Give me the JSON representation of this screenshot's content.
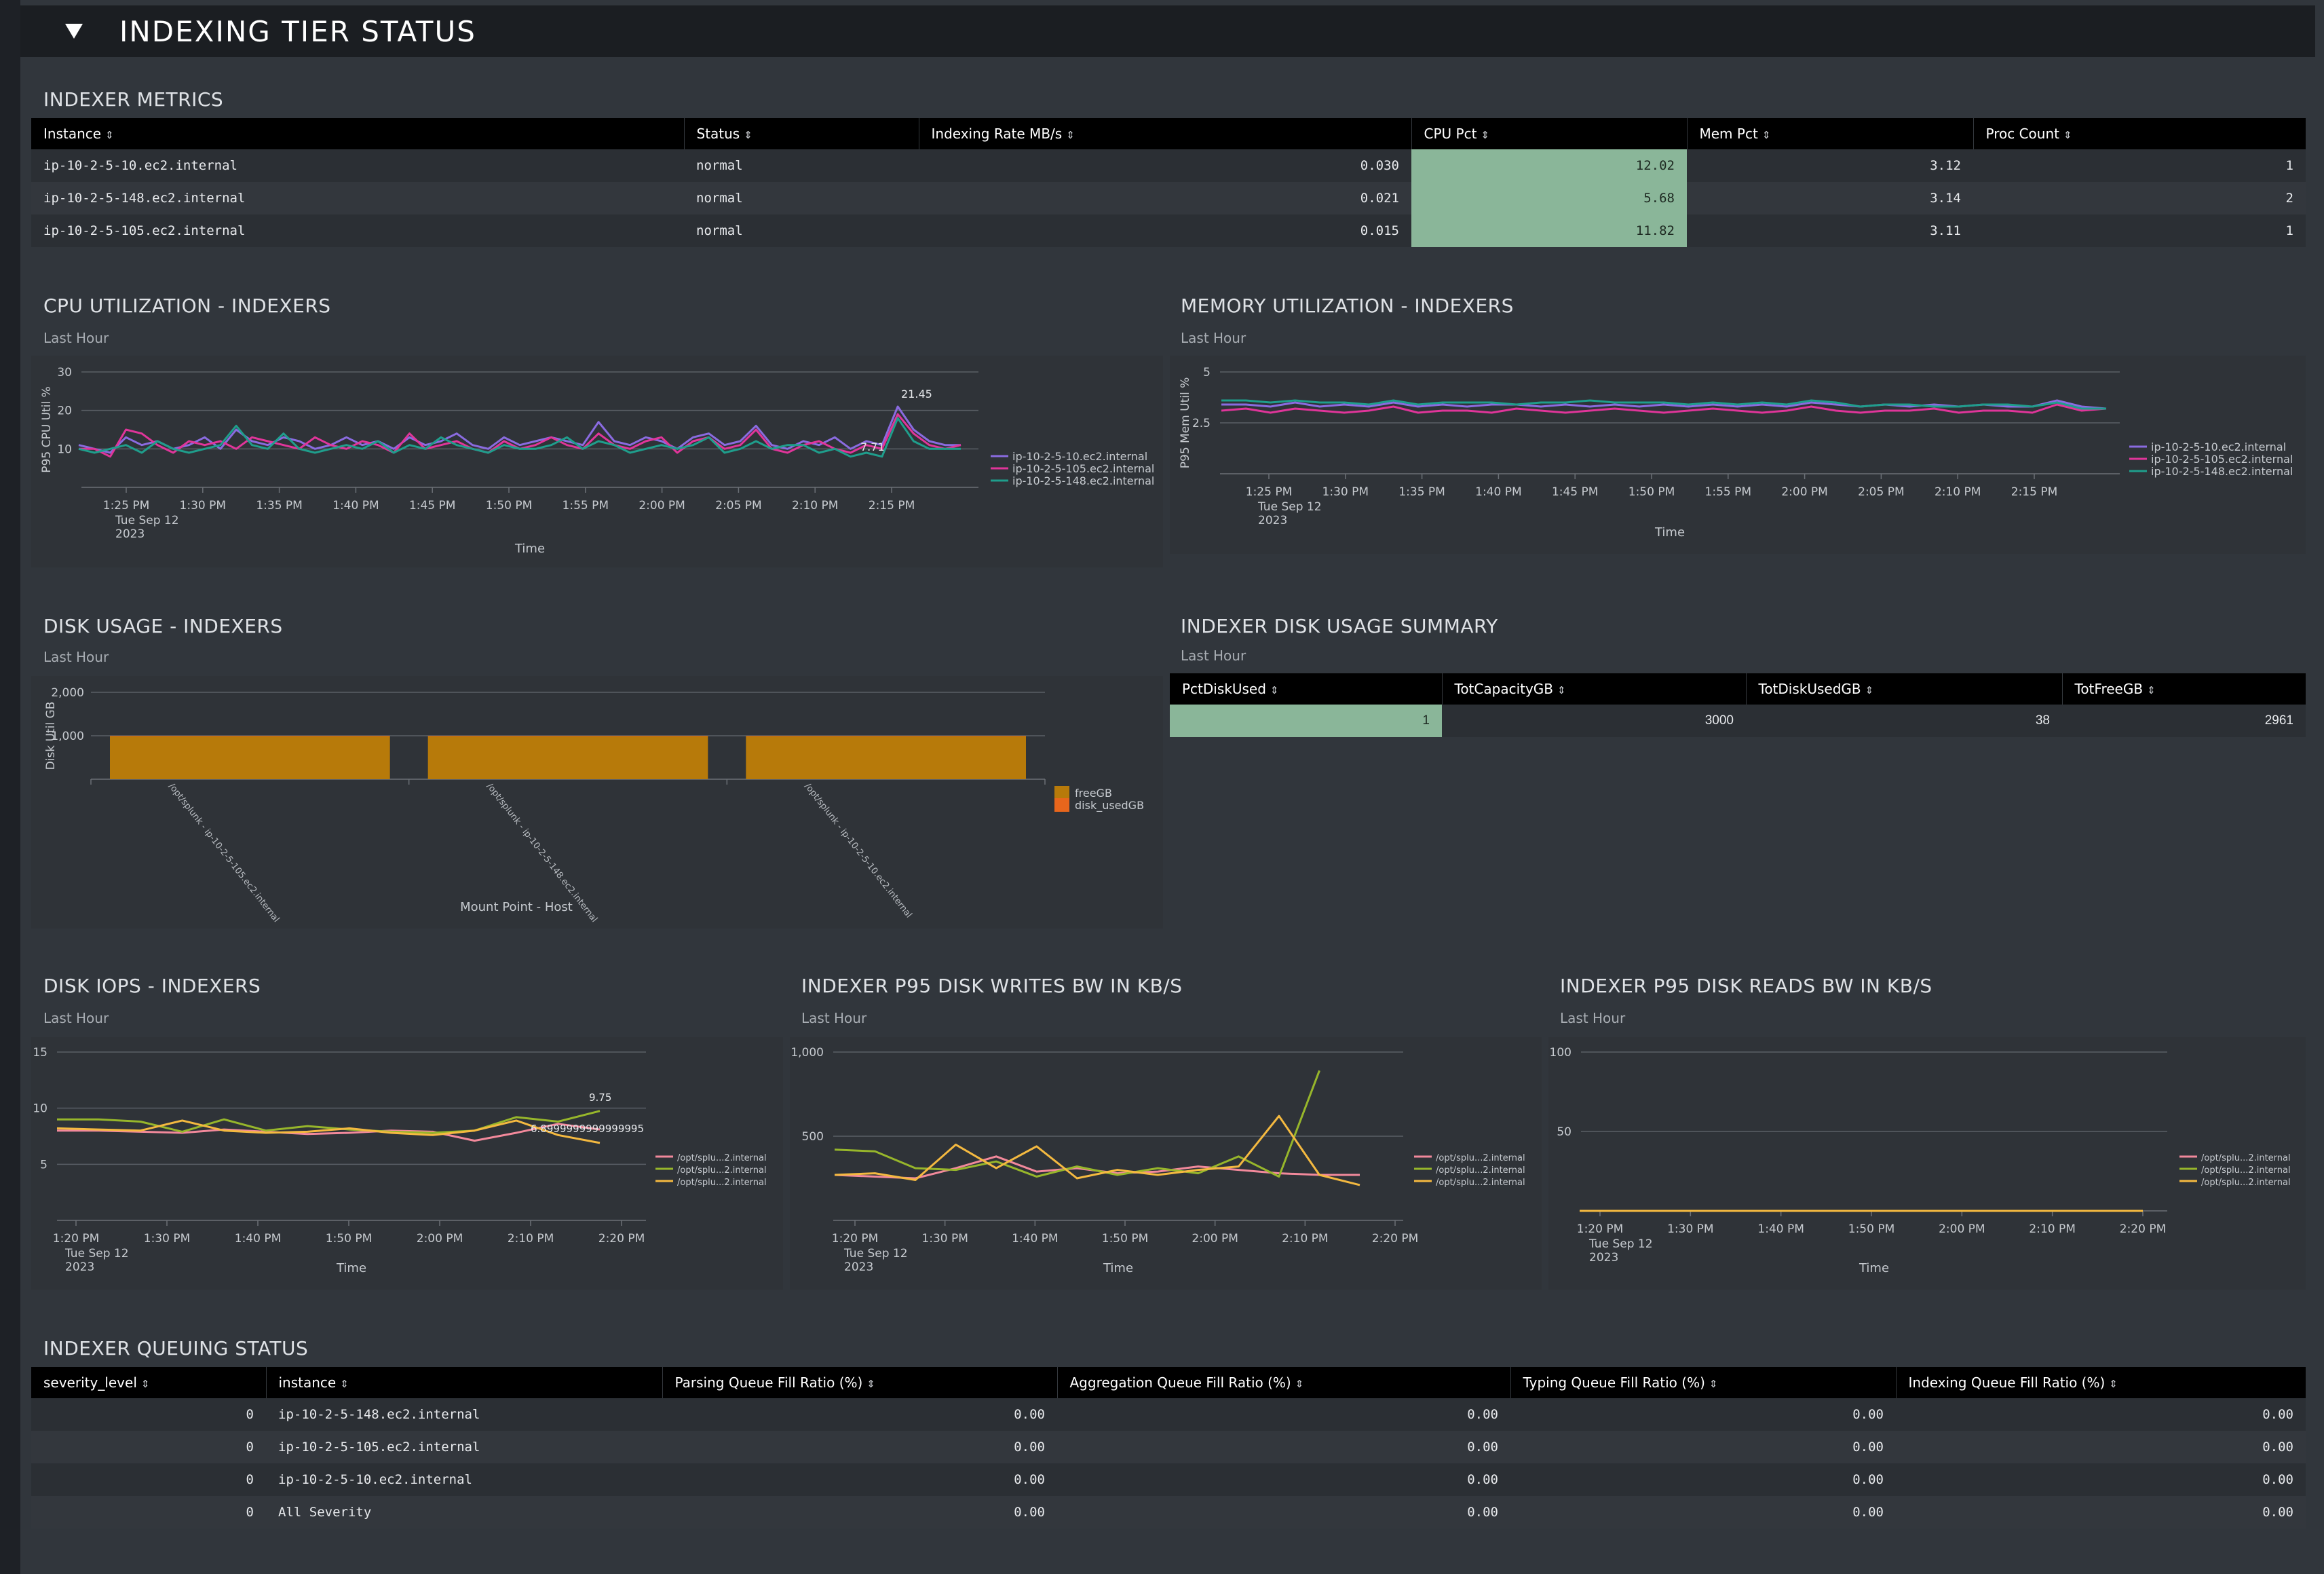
{
  "header": {
    "title": "INDEXING TIER STATUS"
  },
  "indexer_metrics": {
    "title": "INDEXER METRICS",
    "columns": [
      "Instance",
      "Status",
      "Indexing Rate MB/s",
      "CPU Pct",
      "Mem Pct",
      "Proc Count"
    ],
    "rows": [
      [
        "ip-10-2-5-10.ec2.internal",
        "normal",
        "0.030",
        "12.02",
        "3.12",
        "1"
      ],
      [
        "ip-10-2-5-148.ec2.internal",
        "normal",
        "0.021",
        "5.68",
        "3.14",
        "2"
      ],
      [
        "ip-10-2-5-105.ec2.internal",
        "normal",
        "0.015",
        "11.82",
        "3.11",
        "1"
      ]
    ]
  },
  "cpu_panel": {
    "title": "CPU UTILIZATION - INDEXERS",
    "subtitle": "Last Hour",
    "chart_data": {
      "type": "line",
      "ylabel": "P95 CPU Util %",
      "xlabel": "Time",
      "ylim": [
        0,
        30
      ],
      "yticks": [
        "10",
        "20",
        "30"
      ],
      "xticks": [
        "1:25 PM",
        "1:30 PM",
        "1:35 PM",
        "1:40 PM",
        "1:45 PM",
        "1:50 PM",
        "1:55 PM",
        "2:00 PM",
        "2:05 PM",
        "2:10 PM",
        "2:15 PM"
      ],
      "date_label": [
        "Tue Sep 12",
        "2023"
      ],
      "annotations": [
        "21.45",
        "7.71"
      ],
      "series": [
        {
          "name": "ip-10-2-5-10.ec2.internal",
          "color": "#8a6be0",
          "values": [
            11,
            10,
            9,
            13,
            11,
            12,
            10,
            11,
            13,
            10,
            15,
            12,
            11,
            13,
            12,
            10,
            11,
            13,
            11,
            12,
            10,
            13,
            11,
            12,
            14,
            11,
            10,
            13,
            11,
            12,
            13,
            12,
            11,
            17,
            12,
            11,
            13,
            12,
            10,
            13,
            14,
            11,
            12,
            16,
            11,
            10,
            12,
            11,
            13,
            10,
            12,
            11,
            21,
            15,
            12,
            11,
            11
          ]
        },
        {
          "name": "ip-10-2-5-105.ec2.internal",
          "color": "#e0359a",
          "values": [
            10,
            10,
            8,
            15,
            14,
            11,
            9,
            12,
            11,
            12,
            10,
            13,
            12,
            11,
            10,
            13,
            11,
            10,
            12,
            11,
            9,
            14,
            10,
            11,
            12,
            10,
            9,
            12,
            10,
            11,
            13,
            11,
            10,
            14,
            11,
            10,
            12,
            13,
            9,
            12,
            13,
            10,
            11,
            15,
            10,
            9,
            11,
            12,
            10,
            9,
            11,
            10,
            19,
            14,
            11,
            10,
            11
          ]
        },
        {
          "name": "ip-10-2-5-148.ec2.internal",
          "color": "#1f9e8c",
          "values": [
            10,
            9,
            10,
            11,
            9,
            12,
            10,
            9,
            10,
            11,
            16,
            11,
            10,
            14,
            10,
            9,
            10,
            11,
            10,
            12,
            9,
            11,
            10,
            13,
            11,
            10,
            9,
            11,
            10,
            10,
            11,
            13,
            10,
            12,
            11,
            9,
            10,
            11,
            10,
            11,
            13,
            9,
            10,
            12,
            10,
            11,
            11,
            9,
            10,
            8,
            9,
            8,
            18,
            12,
            10,
            10,
            10
          ]
        }
      ]
    }
  },
  "mem_panel": {
    "title": "MEMORY UTILIZATION - INDEXERS",
    "subtitle": "Last Hour",
    "chart_data": {
      "type": "line",
      "ylabel": "P95 Mem Util %",
      "xlabel": "Time",
      "ylim": [
        0,
        5
      ],
      "yticks": [
        "2.5",
        "5"
      ],
      "xticks": [
        "1:25 PM",
        "1:30 PM",
        "1:35 PM",
        "1:40 PM",
        "1:45 PM",
        "1:50 PM",
        "1:55 PM",
        "2:00 PM",
        "2:05 PM",
        "2:10 PM",
        "2:15 PM"
      ],
      "date_label": [
        "Tue Sep 12",
        "2023"
      ],
      "series": [
        {
          "name": "ip-10-2-5-10.ec2.internal",
          "color": "#8a6be0",
          "values": [
            3.4,
            3.4,
            3.3,
            3.5,
            3.3,
            3.4,
            3.3,
            3.5,
            3.3,
            3.4,
            3.3,
            3.4,
            3.4,
            3.3,
            3.4,
            3.3,
            3.4,
            3.3,
            3.4,
            3.3,
            3.4,
            3.3,
            3.4,
            3.3,
            3.5,
            3.4,
            3.3,
            3.4,
            3.3,
            3.4,
            3.3,
            3.4,
            3.3,
            3.3,
            3.6,
            3.3,
            3.2
          ]
        },
        {
          "name": "ip-10-2-5-105.ec2.internal",
          "color": "#e0359a",
          "values": [
            3.1,
            3.2,
            3.0,
            3.2,
            3.1,
            3.0,
            3.1,
            3.3,
            3.0,
            3.1,
            3.1,
            3.0,
            3.2,
            3.1,
            3.0,
            3.1,
            3.2,
            3.1,
            3.0,
            3.1,
            3.2,
            3.1,
            3.0,
            3.1,
            3.3,
            3.1,
            3.0,
            3.1,
            3.1,
            3.2,
            3.0,
            3.1,
            3.1,
            3.0,
            3.4,
            3.1,
            3.2
          ]
        },
        {
          "name": "ip-10-2-5-148.ec2.internal",
          "color": "#1f9e8c",
          "values": [
            3.6,
            3.6,
            3.5,
            3.6,
            3.5,
            3.5,
            3.4,
            3.6,
            3.4,
            3.5,
            3.5,
            3.5,
            3.4,
            3.5,
            3.5,
            3.6,
            3.5,
            3.5,
            3.5,
            3.4,
            3.5,
            3.4,
            3.5,
            3.4,
            3.6,
            3.5,
            3.3,
            3.4,
            3.4,
            3.3,
            3.3,
            3.4,
            3.4,
            3.3,
            3.5,
            3.2,
            3.2
          ]
        }
      ]
    }
  },
  "disk_usage_panel": {
    "title": "DISK USAGE - INDEXERS",
    "subtitle": "Last Hour",
    "chart_data": {
      "type": "bar",
      "stacked": true,
      "ylabel": "Disk Util GB",
      "xlabel": "Mount Point - Host",
      "ylim": [
        0,
        2000
      ],
      "yticks": [
        "1,000",
        "2,000"
      ],
      "categories": [
        "/opt/splunk - ip-10-2-5-105.ec2.internal",
        "/opt/splunk - ip-10-2-5-148.ec2.internal",
        "/opt/splunk - ip-10-2-5-10.ec2.internal"
      ],
      "series": [
        {
          "name": "freeGB",
          "color": "#b77a0a",
          "values": [
            987,
            987,
            987
          ]
        },
        {
          "name": "disk_usedGB",
          "color": "#e8661c",
          "values": [
            13,
            13,
            12
          ]
        }
      ]
    }
  },
  "disk_summary_panel": {
    "title": "INDEXER DISK USAGE SUMMARY",
    "subtitle": "Last Hour",
    "columns": [
      "PctDiskUsed",
      "TotCapacityGB",
      "TotDiskUsedGB",
      "TotFreeGB"
    ],
    "rows": [
      [
        "1",
        "3000",
        "38",
        "2961"
      ]
    ]
  },
  "iops_panel": {
    "title": "DISK IOPS - INDEXERS",
    "subtitle": "Last Hour",
    "chart_data": {
      "type": "line",
      "xlabel": "Time",
      "ylim": [
        0,
        15
      ],
      "yticks": [
        "5",
        "10",
        "15"
      ],
      "xticks": [
        "1:20 PM",
        "1:30 PM",
        "1:40 PM",
        "1:50 PM",
        "2:00 PM",
        "2:10 PM",
        "2:20 PM"
      ],
      "date_label": [
        "Tue Sep 12",
        "2023"
      ],
      "annotations": [
        "9.75",
        "6.8999999999999995"
      ],
      "series": [
        {
          "name": "/opt/splu...2.internal",
          "color": "#f2899b",
          "values": [
            8.0,
            8.0,
            7.9,
            7.8,
            8.1,
            7.9,
            7.7,
            7.8,
            8.0,
            7.9,
            7.1,
            7.8,
            8.6,
            8.1
          ]
        },
        {
          "name": "/opt/splu...2.internal",
          "color": "#97b62b",
          "values": [
            9.0,
            9.0,
            8.8,
            7.9,
            9.0,
            8.0,
            8.4,
            8.1,
            7.9,
            7.8,
            8.0,
            9.2,
            8.8,
            9.75
          ]
        },
        {
          "name": "/opt/splu...2.internal",
          "color": "#f4b940",
          "values": [
            8.2,
            8.1,
            8.0,
            8.9,
            8.0,
            7.8,
            7.9,
            8.2,
            7.8,
            7.6,
            8.0,
            8.9,
            7.6,
            6.9
          ]
        }
      ]
    }
  },
  "writes_panel": {
    "title": "INDEXER P95 DISK WRITES BW IN KB/S",
    "subtitle": "Last Hour",
    "chart_data": {
      "type": "line",
      "xlabel": "Time",
      "ylim": [
        0,
        1000
      ],
      "yticks": [
        "500",
        "1,000"
      ],
      "xticks": [
        "1:20 PM",
        "1:30 PM",
        "1:40 PM",
        "1:50 PM",
        "2:00 PM",
        "2:10 PM",
        "2:20 PM"
      ],
      "date_label": [
        "Tue Sep 12",
        "2023"
      ],
      "series": [
        {
          "name": "/opt/splu...2.internal",
          "color": "#f2899b",
          "values": [
            270,
            260,
            250,
            310,
            380,
            290,
            310,
            280,
            290,
            320,
            300,
            280,
            270,
            270
          ]
        },
        {
          "name": "/opt/splu...2.internal",
          "color": "#97b62b",
          "values": [
            420,
            410,
            310,
            300,
            350,
            260,
            320,
            270,
            310,
            280,
            380,
            260,
            890,
            null
          ]
        },
        {
          "name": "/opt/splu...2.internal",
          "color": "#f4b940",
          "values": [
            270,
            280,
            240,
            450,
            310,
            440,
            250,
            300,
            270,
            300,
            320,
            620,
            270,
            210
          ]
        }
      ]
    }
  },
  "reads_panel": {
    "title": "INDEXER P95 DISK READS BW IN KB/S",
    "subtitle": "Last Hour",
    "chart_data": {
      "type": "line",
      "xlabel": "Time",
      "ylim": [
        0,
        100
      ],
      "yticks": [
        "50",
        "100"
      ],
      "xticks": [
        "1:20 PM",
        "1:30 PM",
        "1:40 PM",
        "1:50 PM",
        "2:00 PM",
        "2:10 PM",
        "2:20 PM"
      ],
      "date_label": [
        "Tue Sep 12",
        "2023"
      ],
      "series": [
        {
          "name": "/opt/splu...2.internal",
          "color": "#f2899b",
          "values": [
            0,
            0,
            0,
            0,
            0,
            0,
            0,
            0,
            0,
            0,
            0,
            0,
            0,
            0
          ]
        },
        {
          "name": "/opt/splu...2.internal",
          "color": "#97b62b",
          "values": [
            0,
            0,
            0,
            0,
            0,
            0,
            0,
            0,
            0,
            0,
            0,
            0,
            0,
            0
          ]
        },
        {
          "name": "/opt/splu...2.internal",
          "color": "#f4b940",
          "values": [
            0,
            0,
            0,
            0,
            0,
            0,
            0,
            0,
            0,
            0,
            0,
            0,
            0,
            0
          ]
        }
      ]
    }
  },
  "queue_panel": {
    "title": "INDEXER QUEUING STATUS",
    "columns": [
      "severity_level",
      "instance",
      "Parsing Queue Fill Ratio (%)",
      "Aggregation Queue Fill Ratio (%)",
      "Typing Queue Fill Ratio (%)",
      "Indexing Queue Fill Ratio (%)"
    ],
    "rows": [
      [
        "0",
        "ip-10-2-5-148.ec2.internal",
        "0.00",
        "0.00",
        "0.00",
        "0.00"
      ],
      [
        "0",
        "ip-10-2-5-105.ec2.internal",
        "0.00",
        "0.00",
        "0.00",
        "0.00"
      ],
      [
        "0",
        "ip-10-2-5-10.ec2.internal",
        "0.00",
        "0.00",
        "0.00",
        "0.00"
      ],
      [
        "0",
        "All Severity",
        "0.00",
        "0.00",
        "0.00",
        "0.00"
      ]
    ]
  },
  "colors": {
    "background": "#31363c",
    "header_bar": "#1b1e22",
    "table_header": "#000000",
    "highlight_cell": "#8ab699"
  }
}
